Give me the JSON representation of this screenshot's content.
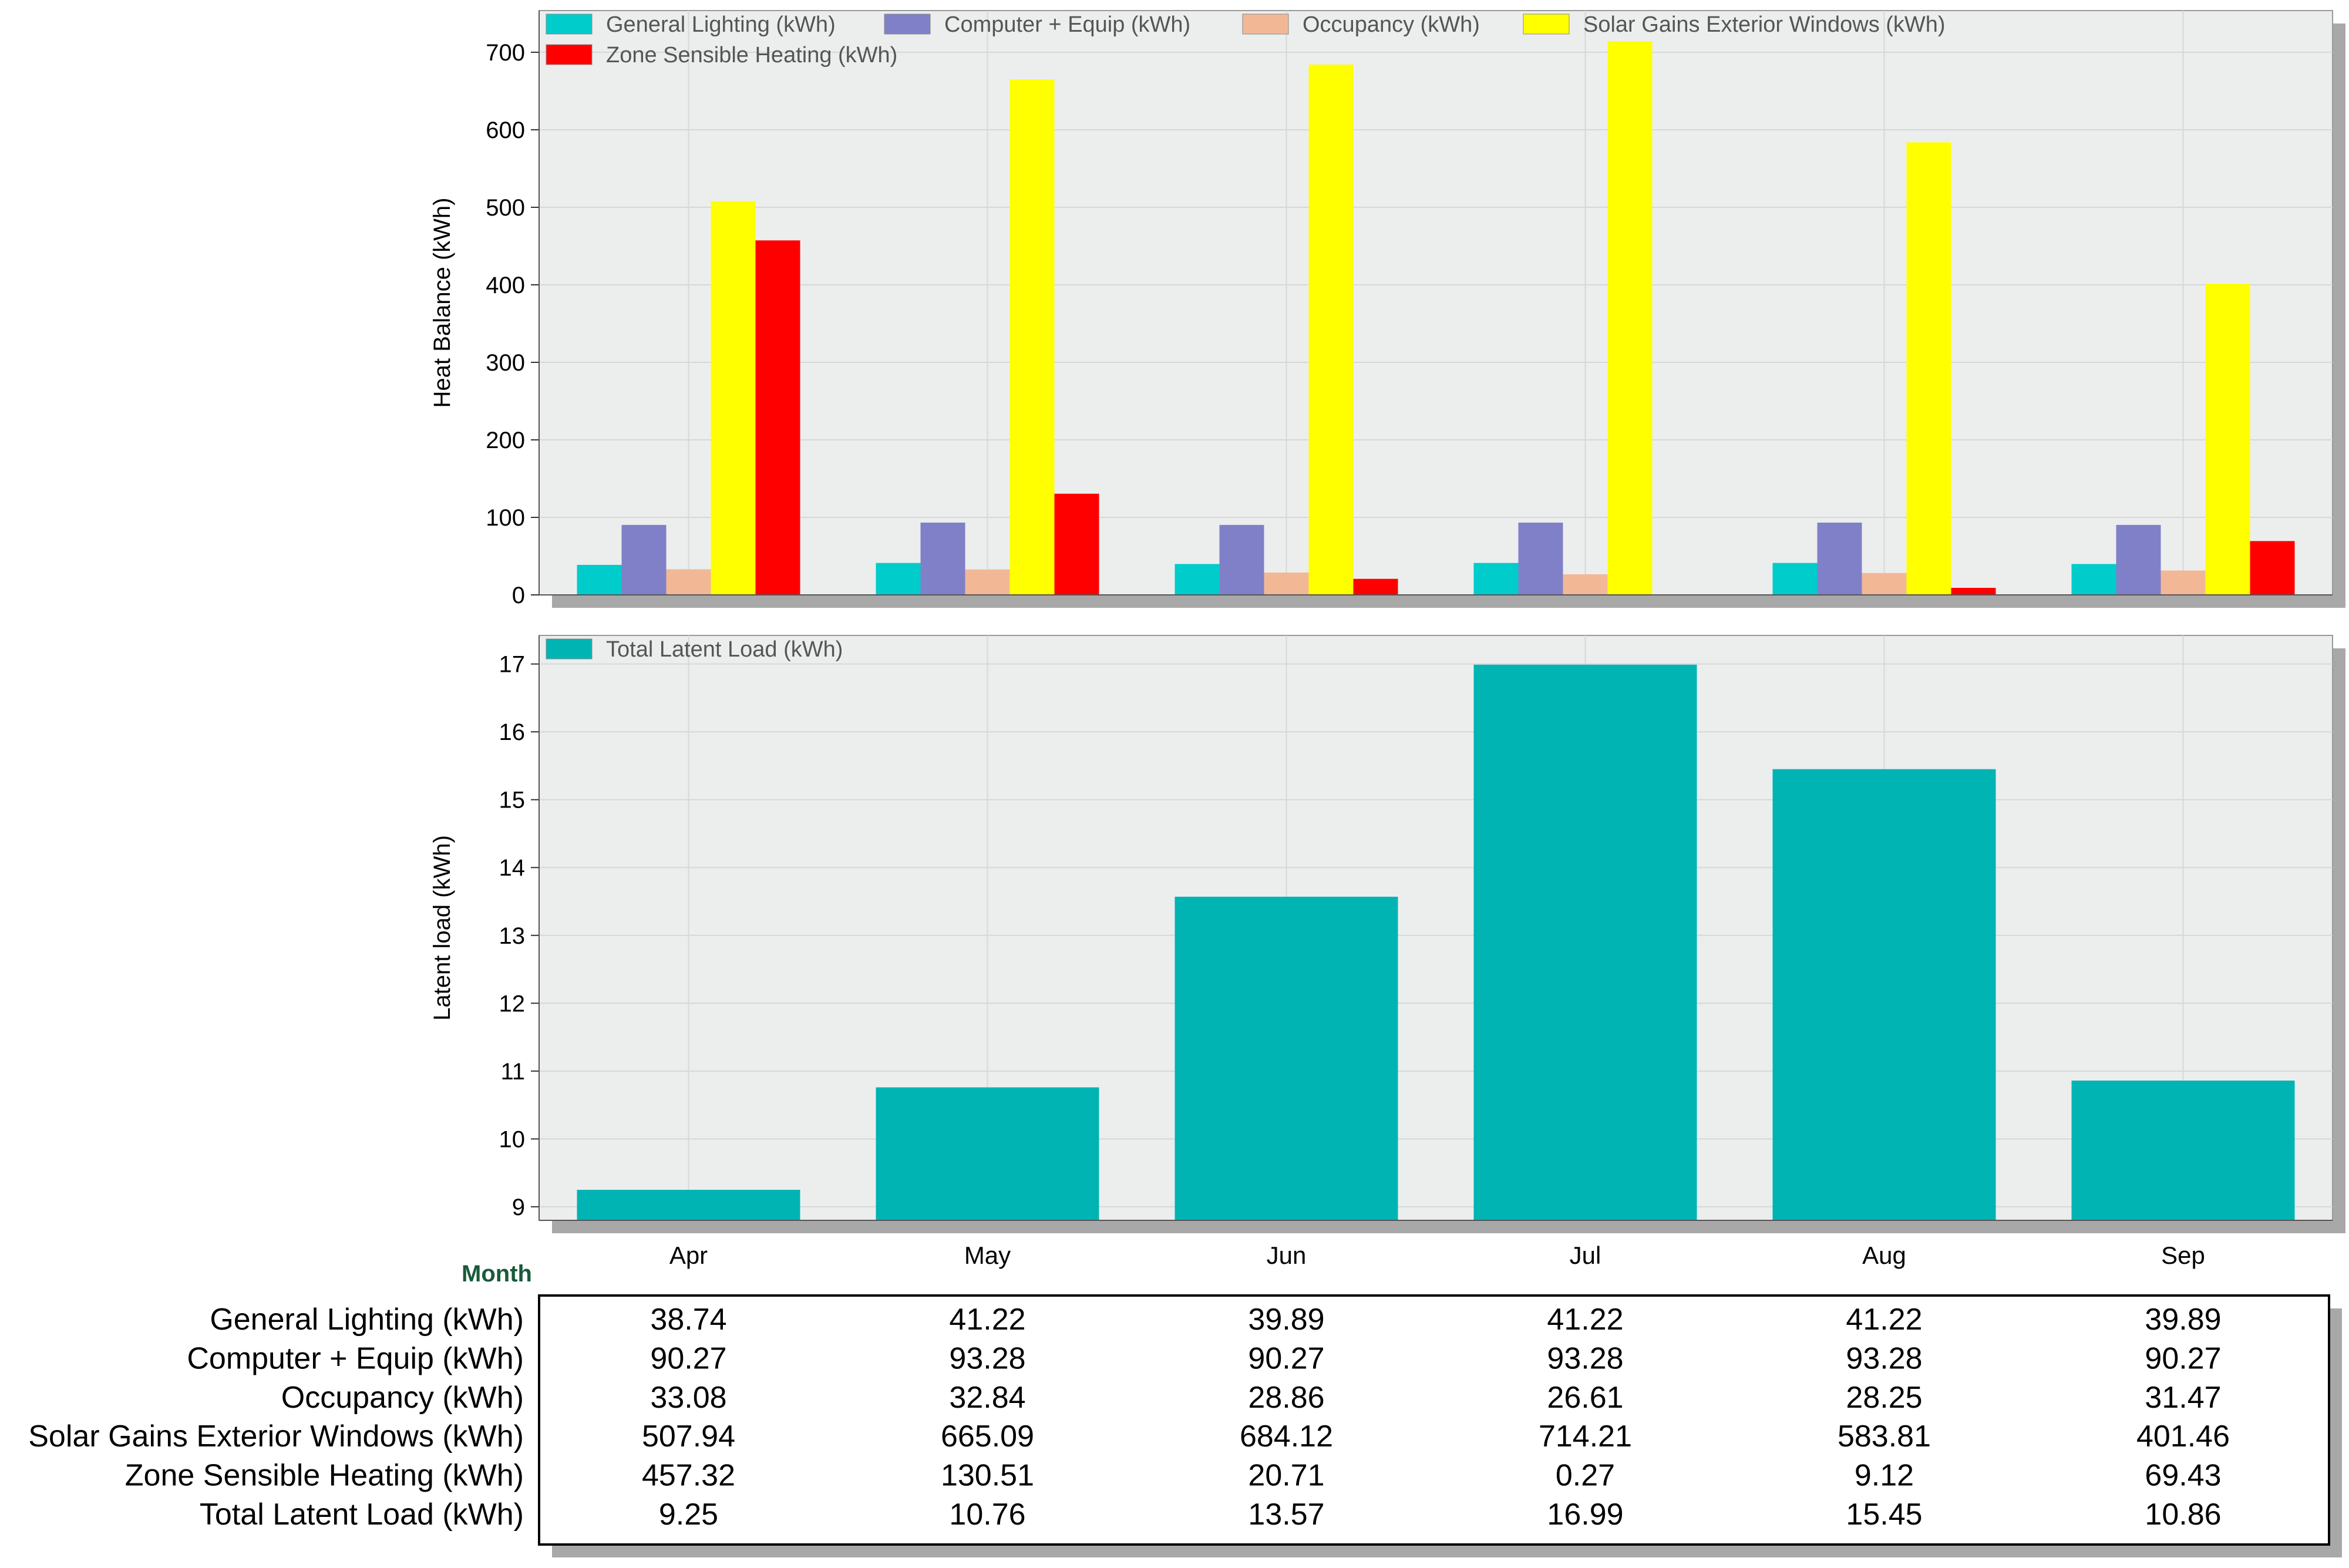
{
  "chart_data": [
    {
      "type": "bar",
      "categories": [
        "Apr",
        "May",
        "Jun",
        "Jul",
        "Aug",
        "Sep"
      ],
      "ylabel": "Heat Balance (kWh)",
      "ylim": [
        0,
        750
      ],
      "yticks": [
        0,
        100,
        200,
        300,
        400,
        500,
        600,
        700
      ],
      "grid": true,
      "legend_position": "top",
      "series": [
        {
          "name": "General Lighting (kWh)",
          "color": "#00CCCC",
          "values": [
            38.74,
            41.22,
            39.89,
            41.22,
            41.22,
            39.89
          ]
        },
        {
          "name": "Computer + Equip (kWh)",
          "color": "#8080C8",
          "values": [
            90.27,
            93.28,
            90.27,
            93.28,
            93.28,
            90.27
          ]
        },
        {
          "name": "Occupancy (kWh)",
          "color": "#F2B896",
          "values": [
            33.08,
            32.84,
            28.86,
            26.61,
            28.25,
            31.47
          ]
        },
        {
          "name": "Solar Gains Exterior Windows (kWh)",
          "color": "#FFFF00",
          "values": [
            507.94,
            665.09,
            684.12,
            714.21,
            583.81,
            401.46
          ]
        },
        {
          "name": "Zone Sensible Heating (kWh)",
          "color": "#FF0000",
          "values": [
            457.32,
            130.51,
            20.71,
            0.27,
            9.12,
            69.43
          ]
        }
      ]
    },
    {
      "type": "bar",
      "categories": [
        "Apr",
        "May",
        "Jun",
        "Jul",
        "Aug",
        "Sep"
      ],
      "xlabel": "Month",
      "ylabel": "Latent load (kWh)",
      "ylim": [
        8.8,
        17.3
      ],
      "yticks": [
        9,
        10,
        11,
        12,
        13,
        14,
        15,
        16,
        17
      ],
      "grid": true,
      "legend_position": "top",
      "series": [
        {
          "name": "Total Latent Load (kWh)",
          "color": "#00B4B4",
          "values": [
            9.25,
            10.76,
            13.57,
            16.99,
            15.45,
            10.86
          ]
        }
      ]
    },
    {
      "type": "table",
      "rows": [
        {
          "label": "General Lighting (kWh)",
          "values": [
            "38.74",
            "41.22",
            "39.89",
            "41.22",
            "41.22",
            "39.89"
          ]
        },
        {
          "label": "Computer + Equip (kWh)",
          "values": [
            "90.27",
            "93.28",
            "90.27",
            "93.28",
            "93.28",
            "90.27"
          ]
        },
        {
          "label": "Occupancy (kWh)",
          "values": [
            "33.08",
            "32.84",
            "28.86",
            "26.61",
            "28.25",
            "31.47"
          ]
        },
        {
          "label": "Solar Gains Exterior Windows (kWh)",
          "values": [
            "507.94",
            "665.09",
            "684.12",
            "714.21",
            "583.81",
            "401.46"
          ]
        },
        {
          "label": "Zone Sensible Heating (kWh)",
          "values": [
            "457.32",
            "130.51",
            "20.71",
            "0.27",
            "9.12",
            "69.43"
          ]
        },
        {
          "label": "Total Latent Load (kWh)",
          "values": [
            "9.25",
            "10.76",
            "13.57",
            "16.99",
            "15.45",
            "10.86"
          ]
        }
      ]
    }
  ]
}
